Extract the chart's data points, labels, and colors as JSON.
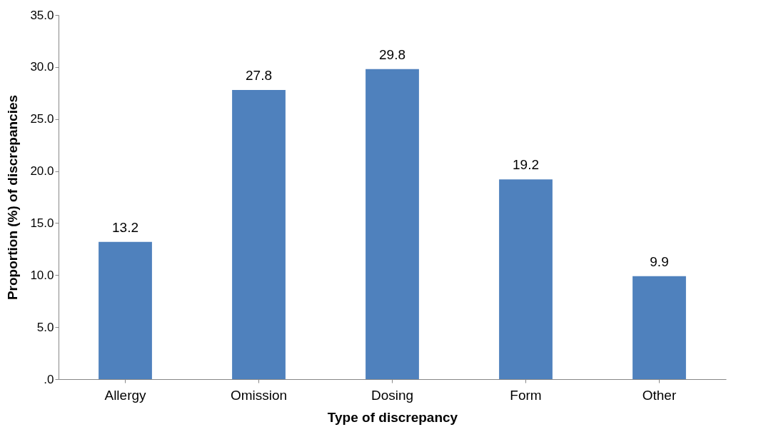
{
  "chart_data": {
    "type": "bar",
    "xlabel": "Type of discrepancy",
    "ylabel": "Proportion (%) of discrepancies",
    "categories": [
      "Allergy",
      "Omission",
      "Dosing",
      "Form",
      "Other"
    ],
    "values": [
      13.2,
      27.8,
      29.8,
      19.2,
      9.9
    ],
    "color": "#4f81bd",
    "ylim": [
      0,
      35
    ],
    "yticks": [
      {
        "value": 0,
        "label": ".0"
      },
      {
        "value": 5,
        "label": "5.0"
      },
      {
        "value": 10,
        "label": "10.0"
      },
      {
        "value": 15,
        "label": "15.0"
      },
      {
        "value": 20,
        "label": "20.0"
      },
      {
        "value": 25,
        "label": "25.0"
      },
      {
        "value": 30,
        "label": "30.0"
      },
      {
        "value": 35,
        "label": "35.0"
      }
    ],
    "grid": false,
    "data_labels": true
  }
}
